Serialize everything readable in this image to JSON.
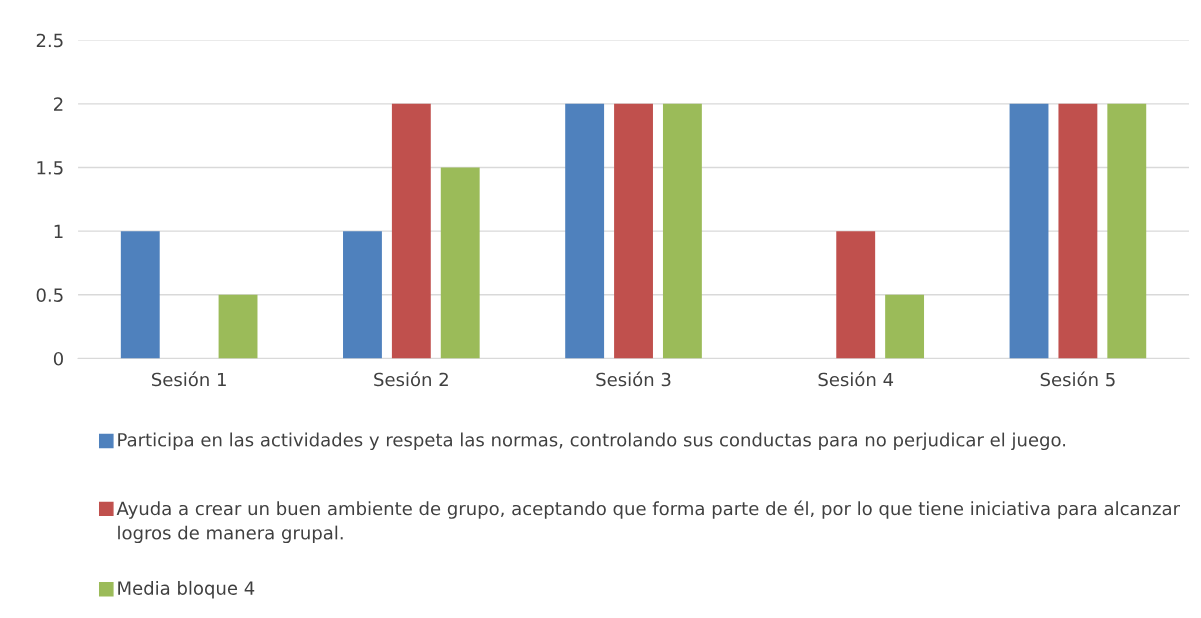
{
  "chart_data": {
    "type": "bar",
    "categories": [
      "Sesión 1",
      "Sesión 2",
      "Sesión 3",
      "Sesión 4",
      "Sesión 5"
    ],
    "series": [
      {
        "name": "Participa en las actividades y respeta las normas, controlando sus conductas para no perjudicar el juego.",
        "color": "#4f81bd",
        "values": [
          1,
          1,
          2,
          0,
          2
        ]
      },
      {
        "name": "Ayuda a crear un buen ambiente de grupo, aceptando que forma parte de él, por lo que tiene iniciativa para alcanzar logros de manera grupal.",
        "color": "#c0504d",
        "values": [
          0,
          2,
          2,
          1,
          2
        ]
      },
      {
        "name": "Media bloque 4",
        "color": "#9bbb59",
        "values": [
          0.5,
          1.5,
          2,
          0.5,
          2
        ]
      }
    ],
    "ylim": [
      0,
      2.5
    ],
    "yticks": [
      0,
      0.5,
      1,
      1.5,
      2,
      2.5
    ],
    "grid": "y",
    "legend": "bottom"
  }
}
